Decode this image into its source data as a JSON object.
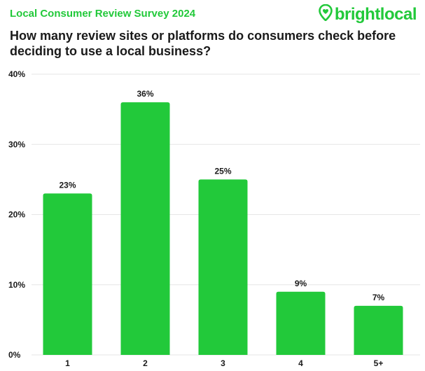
{
  "header": {
    "survey_title": "Local Consumer Review Survey 2024",
    "brand": "brightlocal",
    "brand_icon": "map-pin-heart-icon",
    "question": "How many review sites or platforms do consumers check before deciding to use a local business?"
  },
  "colors": {
    "bar": "#22c93a",
    "accent": "#22c93a",
    "text": "#1a1a1a",
    "grid": "#e6e6e6"
  },
  "chart_data": {
    "type": "bar",
    "categories": [
      "1",
      "2",
      "3",
      "4",
      "5+"
    ],
    "values": [
      23,
      36,
      25,
      9,
      7
    ],
    "data_labels": [
      "23%",
      "36%",
      "25%",
      "9%",
      "7%"
    ],
    "title": "How many review sites or platforms do consumers check before deciding to use a local business?",
    "xlabel": "",
    "ylabel": "",
    "ylim": [
      0,
      40
    ],
    "yticks": [
      0,
      10,
      20,
      30,
      40
    ],
    "ytick_labels": [
      "0%",
      "10%",
      "20%",
      "30%",
      "40%"
    ],
    "grid": true,
    "legend": "none"
  }
}
